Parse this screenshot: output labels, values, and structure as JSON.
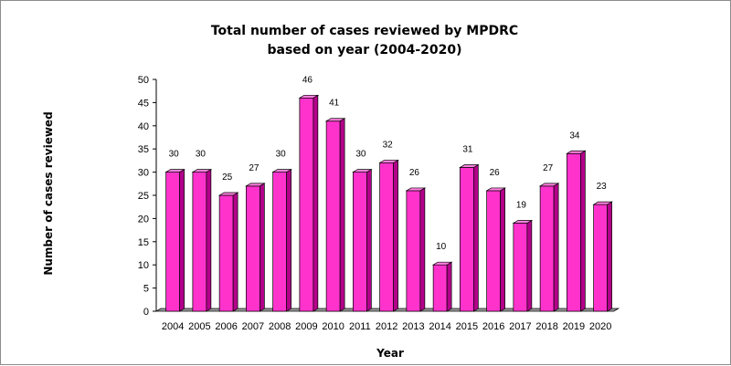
{
  "chart_data": {
    "type": "bar",
    "title": "Total number of cases reviewed by MPDRC",
    "subtitle": "based on year (2004-2020)",
    "xlabel": "Year",
    "ylabel": "Number of cases reviewed",
    "categories": [
      "2004",
      "2005",
      "2006",
      "2007",
      "2008",
      "2009",
      "2010",
      "2011",
      "2012",
      "2013",
      "2014",
      "2015",
      "2016",
      "2017",
      "2018",
      "2019",
      "2020"
    ],
    "values": [
      30,
      30,
      25,
      27,
      30,
      46,
      41,
      30,
      32,
      26,
      10,
      31,
      26,
      19,
      27,
      34,
      23
    ],
    "ylim": [
      0,
      50
    ],
    "yticks": [
      0,
      5,
      10,
      15,
      20,
      25,
      30,
      35,
      40,
      45,
      50
    ],
    "grid": false,
    "legend": "none",
    "bar_style": "3d",
    "colors": {
      "bar_front": "#ff33cc",
      "bar_side": "#b3008a",
      "bar_top": "#ff80e0",
      "floor": "#9e9e9e",
      "border": "#8c8c8c"
    }
  }
}
